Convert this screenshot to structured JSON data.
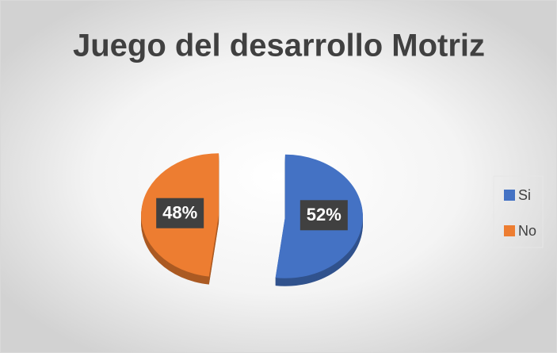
{
  "chart_data": {
    "type": "pie",
    "title": "Juego del desarrollo Motriz",
    "categories": [
      "Si",
      "No"
    ],
    "values": [
      52,
      48
    ],
    "value_labels": [
      "52%",
      "48%"
    ],
    "colors": [
      "#4472c4",
      "#ed7d31"
    ],
    "legend": "right",
    "exploded": true
  }
}
